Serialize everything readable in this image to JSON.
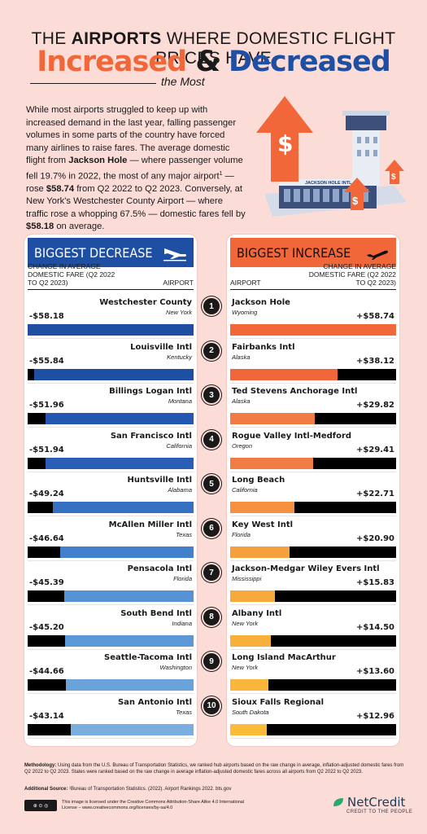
{
  "title": {
    "line1_pre": "THE ",
    "line1_bold": "AIRPORTS",
    "line1_post": " WHERE DOMESTIC FLIGHT PRICES HAVE",
    "increased": "Increased",
    "amp": "&",
    "decreased": "Decreased",
    "most": "the Most"
  },
  "intro": {
    "p1": "While most airports struggled to keep up with increased demand in the last year, falling passenger volumes in some parts of the country have forced many airlines to raise fares. The average domestic flight from ",
    "b1": "Jackson Hole",
    "p2": " — where passenger volume fell 19.7% in 2022, the most of any major airport",
    "sup": "1",
    "p3": " — rose ",
    "b2": "$58.74",
    "p4": " from Q2 2022 to Q2 2023. Conversely, at New York's Westchester County Airport — where traffic rose a whopping 67.5% — domestic fares fell by ",
    "b3": "$58.18",
    "p5": " on average."
  },
  "illustration": {
    "building_sign": "JACKSON HOLE INTL"
  },
  "panels": {
    "left": {
      "title": "BIGGEST DECREASE",
      "col_value": "CHANGE IN AVERAGE DOMESTIC FARE (Q2 2022 TO Q2 2023)",
      "col_airport": "AIRPORT"
    },
    "right": {
      "title": "BIGGEST INCREASE",
      "col_value": "CHANGE IN AVERAGE DOMESTIC FARE (Q2 2022 TO Q2 2023)",
      "col_airport": "AIRPORT"
    }
  },
  "ranks": [
    "1",
    "2",
    "3",
    "4",
    "5",
    "6",
    "7",
    "8",
    "9",
    "10"
  ],
  "chart_data": [
    {
      "type": "bar",
      "title": "BIGGEST DECREASE",
      "categories": [
        "Westchester County",
        "Louisville Intl",
        "Billings Logan Intl",
        "San Francisco Intl",
        "Huntsville Intl",
        "McAllen Miller Intl",
        "Pensacola Intl",
        "South Bend Intl",
        "Seattle-Tacoma Intl",
        "San Antonio Intl"
      ],
      "states": [
        "New York",
        "Kentucky",
        "Montana",
        "California",
        "Alabama",
        "Texas",
        "Florida",
        "Indiana",
        "Washington",
        "Texas"
      ],
      "labels": [
        "-$58.18",
        "-$55.84",
        "-$51.96",
        "-$51.94",
        "-$49.24",
        "-$46.64",
        "-$45.39",
        "-$45.20",
        "-$44.66",
        "-$43.14"
      ],
      "values": [
        -58.18,
        -55.84,
        -51.96,
        -51.94,
        -49.24,
        -46.64,
        -45.39,
        -45.2,
        -44.66,
        -43.14
      ],
      "colors": [
        "#1f4fa3",
        "#1f4fa3",
        "#2557b0",
        "#2a5eb6",
        "#3670c2",
        "#4380cc",
        "#5793d4",
        "#5c97d6",
        "#6aa2da",
        "#79aedf"
      ],
      "xlim": [
        -58.18,
        0
      ]
    },
    {
      "type": "bar",
      "title": "BIGGEST INCREASE",
      "categories": [
        "Jackson Hole",
        "Fairbanks Intl",
        "Ted Stevens Anchorage Intl",
        "Rogue Valley Intl-Medford",
        "Long Beach",
        "Key West Intl",
        "Jackson-Medgar Wiley Evers Intl",
        "Albany Intl",
        "Long Island MacArthur",
        "Sioux Falls Regional"
      ],
      "states": [
        "Wyoming",
        "Alaska",
        "Alaska",
        "Oregon",
        "California",
        "Florida",
        "Mississippi",
        "New York",
        "New York",
        "South Dakota"
      ],
      "labels": [
        "+$58.74",
        "+$38.12",
        "+$29.82",
        "+$29.41",
        "+$22.71",
        "+$20.90",
        "+$15.83",
        "+$14.50",
        "+$13.60",
        "+$12.96"
      ],
      "values": [
        58.74,
        38.12,
        29.82,
        29.41,
        22.71,
        20.9,
        15.83,
        14.5,
        13.6,
        12.96
      ],
      "colors": [
        "#f26739",
        "#f26739",
        "#f27a44",
        "#f27c45",
        "#f5913f",
        "#f6a03d",
        "#f7aa3c",
        "#f8b03b",
        "#f9b63a",
        "#fabb39"
      ],
      "xlim": [
        0,
        58.74
      ]
    }
  ],
  "footer": {
    "meth_label": "Methodology:",
    "meth": " Using data from the U.S. Bureau of Transportation Statistics, we ranked hub airports based on the raw change in average, inflation-adjusted domestic fares from Q2 2022 to Q2 2023. States were ranked based on the raw change in average inflation-adjusted domestic fares across all airports from Q2 2022 to Q2 2023.",
    "src_label": "Additional Source:",
    "src": " ¹Bureau of Transportation Statistics. (2022). Airport Rankings 2022. bts.gov",
    "license": "This image is licensed under the Creative Commons Attribution-Share Alike 4.0 International License – www.creativecommons.org/licenses/by-sa/4.0",
    "logo": "NetCredit",
    "tagline": "CREDIT TO THE PEOPLE"
  }
}
